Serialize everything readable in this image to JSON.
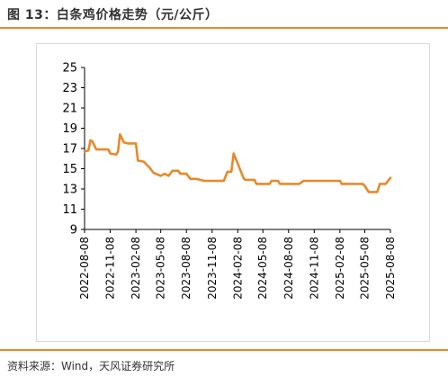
{
  "header": {
    "title": "图 13：白条鸡价格走势（元/公斤）"
  },
  "footer": {
    "source": "资料来源：Wind，天风证券研究所"
  },
  "colors": {
    "accent": "#e8892b",
    "line": "#e8892b"
  },
  "chart_data": {
    "type": "line",
    "title": "白条鸡价格走势（元/公斤）",
    "xlabel": "",
    "ylabel": "",
    "ylim": [
      9,
      25
    ],
    "yticks": [
      "9",
      "11",
      "13",
      "15",
      "17",
      "19",
      "21",
      "23",
      "25"
    ],
    "xticks": [
      "2022-08-08",
      "2022-11-08",
      "2023-02-08",
      "2023-05-08",
      "2023-08-08",
      "2023-11-08",
      "2024-02-08",
      "2024-05-08",
      "2024-08-08",
      "2024-11-08",
      "2025-02-08",
      "2025-05-08",
      "2025-08-08"
    ],
    "grid": false,
    "legend": "none",
    "series": [
      {
        "values": [
          [
            "2022-08-08",
            16.7
          ],
          [
            "2022-08-22",
            16.8
          ],
          [
            "2022-08-29",
            17.8
          ],
          [
            "2022-09-05",
            17.7
          ],
          [
            "2022-09-19",
            16.9
          ],
          [
            "2022-10-10",
            16.9
          ],
          [
            "2022-11-01",
            16.9
          ],
          [
            "2022-11-08",
            16.5
          ],
          [
            "2022-11-29",
            16.4
          ],
          [
            "2022-12-06",
            16.7
          ],
          [
            "2022-12-13",
            18.4
          ],
          [
            "2022-12-27",
            17.6
          ],
          [
            "2023-01-10",
            17.5
          ],
          [
            "2023-02-08",
            17.5
          ],
          [
            "2023-02-15",
            15.8
          ],
          [
            "2023-03-08",
            15.7
          ],
          [
            "2023-03-15",
            15.5
          ],
          [
            "2023-03-29",
            15.1
          ],
          [
            "2023-04-12",
            14.6
          ],
          [
            "2023-05-08",
            14.3
          ],
          [
            "2023-05-22",
            14.5
          ],
          [
            "2023-06-05",
            14.3
          ],
          [
            "2023-06-19",
            14.8
          ],
          [
            "2023-07-10",
            14.8
          ],
          [
            "2023-07-17",
            14.5
          ],
          [
            "2023-08-08",
            14.5
          ],
          [
            "2023-08-22",
            14.0
          ],
          [
            "2023-09-12",
            14.0
          ],
          [
            "2023-10-10",
            13.8
          ],
          [
            "2023-11-08",
            13.8
          ],
          [
            "2023-12-20",
            13.8
          ],
          [
            "2024-01-02",
            14.7
          ],
          [
            "2024-01-16",
            14.7
          ],
          [
            "2024-01-24",
            16.5
          ],
          [
            "2024-02-08",
            15.5
          ],
          [
            "2024-03-01",
            14.0
          ],
          [
            "2024-03-08",
            13.9
          ],
          [
            "2024-04-08",
            13.9
          ],
          [
            "2024-04-15",
            13.5
          ],
          [
            "2024-05-08",
            13.5
          ],
          [
            "2024-06-01",
            13.5
          ],
          [
            "2024-06-08",
            13.8
          ],
          [
            "2024-07-01",
            13.8
          ],
          [
            "2024-07-08",
            13.5
          ],
          [
            "2024-08-08",
            13.5
          ],
          [
            "2024-09-15",
            13.5
          ],
          [
            "2024-10-01",
            13.8
          ],
          [
            "2024-11-08",
            13.8
          ],
          [
            "2025-01-01",
            13.8
          ],
          [
            "2025-02-08",
            13.8
          ],
          [
            "2025-02-15",
            13.5
          ],
          [
            "2025-03-15",
            13.5
          ],
          [
            "2025-05-01",
            13.5
          ],
          [
            "2025-05-08",
            13.3
          ],
          [
            "2025-05-22",
            12.7
          ],
          [
            "2025-06-22",
            12.7
          ],
          [
            "2025-07-01",
            13.5
          ],
          [
            "2025-07-22",
            13.5
          ],
          [
            "2025-08-08",
            14.1
          ]
        ]
      }
    ]
  }
}
